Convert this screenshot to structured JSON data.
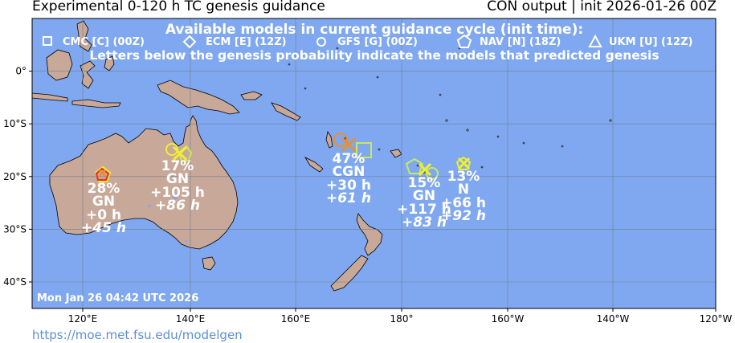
{
  "header": {
    "title_left": "Experimental 0-120 h TC genesis guidance",
    "title_right": "CON output | init 2026-01-26 00Z"
  },
  "legend": {
    "heading": "Available models in current guidance cycle (init time):",
    "models": [
      {
        "symbol": "square",
        "label": "CMC [C] (00Z)"
      },
      {
        "symbol": "diamond",
        "label": "ECM [E] (12Z)"
      },
      {
        "symbol": "circle",
        "label": "GFS [G] (00Z)"
      },
      {
        "symbol": "pentagon",
        "label": "NAV [N] (18Z)"
      },
      {
        "symbol": "triangle",
        "label": "UKM [U] (12Z)"
      }
    ],
    "note": "Letters below the genesis probability indicate the models that predicted genesis"
  },
  "axes": {
    "x_ticks": [
      "120°E",
      "140°E",
      "160°E",
      "180°",
      "160°W",
      "140°W",
      "120°W"
    ],
    "y_ticks": [
      "0°",
      "10°S",
      "20°S",
      "30°S",
      "40°S"
    ]
  },
  "timestamp": "Mon Jan 26 04:42 UTC 2026",
  "source_url": "https://moe.met.fsu.edu/modelgen",
  "colors": {
    "ocean": "#80a8f0",
    "land": "#c8a898",
    "grid": "#6f7f8f",
    "red": "#e8302a",
    "orange": "#e89030",
    "yellow": "#f0f030",
    "lightgreen": "#c8e860"
  },
  "systems": [
    {
      "id": "australia-west",
      "lon": 124.5,
      "lat": -19.8,
      "probability": "28%",
      "models": "GN",
      "first_time": "+0 h",
      "genesis_time": "+45 h"
    },
    {
      "id": "gulf-carpentaria",
      "lon": 138.0,
      "lat": -15.6,
      "probability": "17%",
      "models": "GN",
      "first_time": "+105 h",
      "genesis_time": "+86 h"
    },
    {
      "id": "coral-sea",
      "lon": 170.0,
      "lat": -14.0,
      "probability": "47%",
      "models": "CGN",
      "first_time": "+30 h",
      "genesis_time": "+61 h"
    },
    {
      "id": "fiji",
      "lon": 185.0,
      "lat": -19.0,
      "probability": "15%",
      "models": "GN",
      "first_time": "+117 h",
      "genesis_time": "+83 h"
    },
    {
      "id": "samoa",
      "lon": 192.5,
      "lat": -17.8,
      "probability": "13%",
      "models": "N",
      "first_time": "+66 h",
      "genesis_time": "+92 h"
    }
  ]
}
